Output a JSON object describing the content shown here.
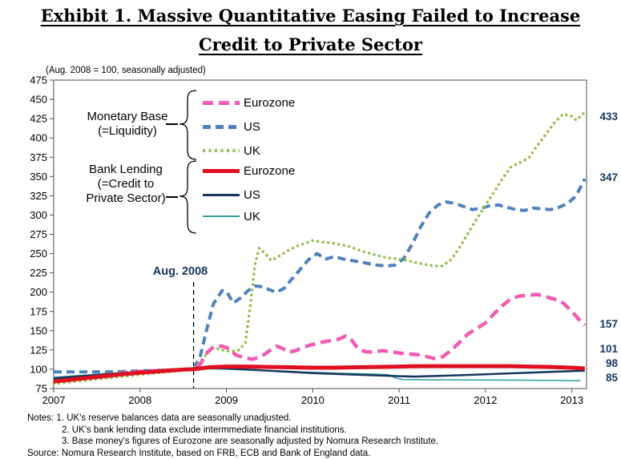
{
  "title": {
    "line1": "Exhibit 1. Massive Quantitative Easing Failed to Increase",
    "line2": "Credit to Private Sector"
  },
  "subtitle": "(Aug. 2008 = 100, seasonally adjusted)",
  "legend": {
    "monetary_base": {
      "label_line1": "Monetary Base",
      "label_line2": "(=Liquidity)",
      "items": [
        "Eurozone",
        "US",
        "UK"
      ]
    },
    "bank_lending": {
      "label_line1": "Bank Lending",
      "label_line2": "(=Credit to",
      "label_line3": "Private Sector)",
      "items": [
        "Eurozone",
        "US",
        "UK"
      ]
    }
  },
  "annotation": {
    "label": "Aug. 2008"
  },
  "notes": {
    "line1": "Notes: 1. UK's reserve balances data are seasonally unadjusted.",
    "line2": "2. UK's bank lending data exclude intermmediate  financial institutions.",
    "line3": "3. Base money's figures of Eurozone are seasonally adjusted by Nomura Research  Institute.",
    "source": "Source: Nomura Research Institute, based on FRB, ECB and Bank of England data."
  },
  "colors": {
    "eurozone_mb": "#F25CB1",
    "us_mb": "#4F81BD",
    "uk_mb": "#94BE4D",
    "eurozone_bl": "#E01020",
    "us_bl": "#17375E",
    "uk_bl": "#2E9E9E",
    "annotation_text": "#17375E",
    "axis": "#4d4d4d"
  },
  "chart_data": {
    "type": "line",
    "title": "Exhibit 1. Massive Quantitative Easing Failed to Increase Credit to Private Sector",
    "subtitle": "(Aug. 2008 = 100, seasonally adjusted)",
    "x_range": [
      2007,
      2013.17
    ],
    "y_range": [
      75,
      475
    ],
    "yticks": [
      75,
      100,
      125,
      150,
      175,
      200,
      225,
      250,
      275,
      300,
      325,
      350,
      375,
      400,
      425,
      450,
      475
    ],
    "xticks": [
      2007,
      2008,
      2009,
      2010,
      2011,
      2012,
      2013
    ],
    "grid": false,
    "legend_position": "inside-top-left",
    "annotation_line_x": 2008.62,
    "end_labels": [
      {
        "text": "433",
        "y": 147
      },
      {
        "text": "347",
        "y": 223
      },
      {
        "text": "157",
        "y": 406
      },
      {
        "text": "101",
        "y": 437
      },
      {
        "text": "98",
        "y": 455
      },
      {
        "text": "85",
        "y": 473
      }
    ],
    "series": [
      {
        "id": "eurozone-monetary-base",
        "name": "Eurozone",
        "group": "Monetary Base (=Liquidity)",
        "color": "#F25CB1",
        "width": 4.5,
        "dash": "13 7",
        "end_value": 157,
        "points": [
          [
            2007.0,
            86
          ],
          [
            2007.25,
            89
          ],
          [
            2007.5,
            92
          ],
          [
            2007.75,
            95
          ],
          [
            2008.0,
            97
          ],
          [
            2008.25,
            98.5
          ],
          [
            2008.5,
            99.5
          ],
          [
            2008.62,
            100
          ],
          [
            2008.7,
            107
          ],
          [
            2008.78,
            122
          ],
          [
            2008.85,
            129
          ],
          [
            2008.95,
            130
          ],
          [
            2009.05,
            126
          ],
          [
            2009.1,
            119
          ],
          [
            2009.2,
            115
          ],
          [
            2009.3,
            113
          ],
          [
            2009.4,
            116
          ],
          [
            2009.5,
            124
          ],
          [
            2009.58,
            130
          ],
          [
            2009.65,
            127
          ],
          [
            2009.72,
            122
          ],
          [
            2009.8,
            124
          ],
          [
            2009.9,
            129
          ],
          [
            2010.0,
            132
          ],
          [
            2010.1,
            135
          ],
          [
            2010.2,
            137
          ],
          [
            2010.3,
            139
          ],
          [
            2010.38,
            143
          ],
          [
            2010.45,
            138
          ],
          [
            2010.52,
            127
          ],
          [
            2010.6,
            123
          ],
          [
            2010.7,
            122
          ],
          [
            2010.8,
            124
          ],
          [
            2010.9,
            123
          ],
          [
            2011.0,
            121
          ],
          [
            2011.1,
            120
          ],
          [
            2011.2,
            119
          ],
          [
            2011.3,
            117
          ],
          [
            2011.4,
            114
          ],
          [
            2011.5,
            116
          ],
          [
            2011.6,
            124
          ],
          [
            2011.7,
            135
          ],
          [
            2011.8,
            146
          ],
          [
            2011.9,
            153
          ],
          [
            2012.0,
            160
          ],
          [
            2012.1,
            172
          ],
          [
            2012.2,
            183
          ],
          [
            2012.3,
            192
          ],
          [
            2012.4,
            195
          ],
          [
            2012.5,
            196
          ],
          [
            2012.6,
            197
          ],
          [
            2012.7,
            194
          ],
          [
            2012.8,
            191
          ],
          [
            2012.9,
            186
          ],
          [
            2013.0,
            175
          ],
          [
            2013.08,
            165
          ],
          [
            2013.15,
            157
          ]
        ]
      },
      {
        "id": "us-monetary-base",
        "name": "US",
        "group": "Monetary Base (=Liquidity)",
        "color": "#4F81BD",
        "width": 4,
        "dash": "10 6",
        "end_value": 347,
        "points": [
          [
            2007.0,
            96.5
          ],
          [
            2007.2,
            96.5
          ],
          [
            2007.4,
            96.5
          ],
          [
            2007.6,
            96.5
          ],
          [
            2007.8,
            97
          ],
          [
            2008.0,
            98
          ],
          [
            2008.2,
            98.5
          ],
          [
            2008.4,
            99
          ],
          [
            2008.62,
            100
          ],
          [
            2008.7,
            118
          ],
          [
            2008.78,
            155
          ],
          [
            2008.85,
            185
          ],
          [
            2008.95,
            202
          ],
          [
            2009.0,
            201
          ],
          [
            2009.08,
            186
          ],
          [
            2009.17,
            193
          ],
          [
            2009.25,
            202
          ],
          [
            2009.33,
            208
          ],
          [
            2009.42,
            207
          ],
          [
            2009.5,
            203
          ],
          [
            2009.58,
            200
          ],
          [
            2009.67,
            205
          ],
          [
            2009.75,
            216
          ],
          [
            2009.85,
            229
          ],
          [
            2009.95,
            242
          ],
          [
            2010.05,
            250
          ],
          [
            2010.15,
            243
          ],
          [
            2010.25,
            246
          ],
          [
            2010.35,
            243
          ],
          [
            2010.45,
            241
          ],
          [
            2010.55,
            239
          ],
          [
            2010.65,
            237
          ],
          [
            2010.75,
            235
          ],
          [
            2010.85,
            234
          ],
          [
            2010.95,
            235
          ],
          [
            2011.05,
            243
          ],
          [
            2011.15,
            262
          ],
          [
            2011.25,
            285
          ],
          [
            2011.35,
            303
          ],
          [
            2011.45,
            313
          ],
          [
            2011.55,
            317
          ],
          [
            2011.65,
            315
          ],
          [
            2011.75,
            311
          ],
          [
            2011.85,
            307
          ],
          [
            2011.95,
            309
          ],
          [
            2012.05,
            312
          ],
          [
            2012.15,
            313
          ],
          [
            2012.25,
            310
          ],
          [
            2012.35,
            307
          ],
          [
            2012.45,
            306
          ],
          [
            2012.55,
            309
          ],
          [
            2012.65,
            308
          ],
          [
            2012.75,
            307
          ],
          [
            2012.85,
            310
          ],
          [
            2012.95,
            315
          ],
          [
            2013.05,
            325
          ],
          [
            2013.15,
            347
          ]
        ]
      },
      {
        "id": "uk-monetary-base",
        "name": "UK",
        "group": "Monetary Base (=Liquidity)",
        "color": "#94BE4D",
        "width": 3.5,
        "dash": "dot",
        "end_value": 433,
        "points": [
          [
            2007.0,
            81
          ],
          [
            2007.17,
            83
          ],
          [
            2007.33,
            85
          ],
          [
            2007.5,
            87
          ],
          [
            2007.67,
            89
          ],
          [
            2007.83,
            91
          ],
          [
            2008.0,
            93
          ],
          [
            2008.17,
            95
          ],
          [
            2008.33,
            96.5
          ],
          [
            2008.5,
            98.5
          ],
          [
            2008.62,
            100
          ],
          [
            2008.7,
            110
          ],
          [
            2008.78,
            121
          ],
          [
            2008.85,
            128
          ],
          [
            2008.95,
            125
          ],
          [
            2009.05,
            123
          ],
          [
            2009.15,
            125
          ],
          [
            2009.22,
            135
          ],
          [
            2009.28,
            185
          ],
          [
            2009.33,
            235
          ],
          [
            2009.38,
            257
          ],
          [
            2009.45,
            250
          ],
          [
            2009.52,
            241
          ],
          [
            2009.6,
            246
          ],
          [
            2009.7,
            253
          ],
          [
            2009.8,
            259
          ],
          [
            2009.9,
            263
          ],
          [
            2010.0,
            267
          ],
          [
            2010.1,
            265
          ],
          [
            2010.2,
            264
          ],
          [
            2010.3,
            262
          ],
          [
            2010.4,
            260
          ],
          [
            2010.5,
            256
          ],
          [
            2010.6,
            252
          ],
          [
            2010.7,
            249
          ],
          [
            2010.8,
            246
          ],
          [
            2010.9,
            244
          ],
          [
            2011.0,
            243
          ],
          [
            2011.1,
            241
          ],
          [
            2011.2,
            238
          ],
          [
            2011.3,
            236
          ],
          [
            2011.4,
            234
          ],
          [
            2011.5,
            234
          ],
          [
            2011.6,
            242
          ],
          [
            2011.7,
            258
          ],
          [
            2011.8,
            277
          ],
          [
            2011.9,
            295
          ],
          [
            2012.0,
            313
          ],
          [
            2012.1,
            330
          ],
          [
            2012.2,
            348
          ],
          [
            2012.3,
            363
          ],
          [
            2012.4,
            368
          ],
          [
            2012.5,
            374
          ],
          [
            2012.6,
            390
          ],
          [
            2012.7,
            405
          ],
          [
            2012.8,
            420
          ],
          [
            2012.9,
            431
          ],
          [
            2013.0,
            428
          ],
          [
            2013.05,
            423
          ],
          [
            2013.15,
            433
          ]
        ]
      },
      {
        "id": "uk-bank-lending",
        "name": "UK",
        "group": "Bank Lending (=Credit to Private Sector)",
        "color": "#2E9E9E",
        "width": 1.5,
        "dash": null,
        "end_value": 85,
        "points": [
          [
            2007.0,
            89.5
          ],
          [
            2007.25,
            91.5
          ],
          [
            2007.5,
            93.5
          ],
          [
            2007.75,
            95.5
          ],
          [
            2008.0,
            97
          ],
          [
            2008.25,
            98.5
          ],
          [
            2008.5,
            99.5
          ],
          [
            2008.62,
            100
          ],
          [
            2008.8,
            100.5
          ],
          [
            2009.0,
            100
          ],
          [
            2009.25,
            99
          ],
          [
            2009.5,
            98
          ],
          [
            2009.75,
            97
          ],
          [
            2010.0,
            96
          ],
          [
            2010.25,
            95
          ],
          [
            2010.5,
            94.3
          ],
          [
            2010.75,
            93.5
          ],
          [
            2010.88,
            93
          ],
          [
            2010.96,
            88.5
          ],
          [
            2011.05,
            86.5
          ],
          [
            2011.3,
            86.3
          ],
          [
            2011.6,
            86.2
          ],
          [
            2012.0,
            86
          ],
          [
            2012.4,
            85.8
          ],
          [
            2012.8,
            85.5
          ],
          [
            2013.0,
            85.2
          ],
          [
            2013.1,
            85
          ]
        ]
      },
      {
        "id": "us-bank-lending",
        "name": "US",
        "group": "Bank Lending (=Credit to Private Sector)",
        "color": "#17375E",
        "width": 2.5,
        "dash": null,
        "end_value": 98,
        "points": [
          [
            2007.0,
            88
          ],
          [
            2007.25,
            90.5
          ],
          [
            2007.5,
            92.5
          ],
          [
            2007.75,
            94.5
          ],
          [
            2008.0,
            96.5
          ],
          [
            2008.25,
            98
          ],
          [
            2008.5,
            99.5
          ],
          [
            2008.62,
            100.5
          ],
          [
            2008.8,
            102
          ],
          [
            2009.0,
            101
          ],
          [
            2009.25,
            99.5
          ],
          [
            2009.5,
            98
          ],
          [
            2009.75,
            96.5
          ],
          [
            2010.0,
            95
          ],
          [
            2010.25,
            94
          ],
          [
            2010.5,
            93
          ],
          [
            2010.75,
            92
          ],
          [
            2011.0,
            91
          ],
          [
            2011.17,
            90.5
          ],
          [
            2011.33,
            91
          ],
          [
            2011.5,
            91.5
          ],
          [
            2011.75,
            92.5
          ],
          [
            2012.0,
            93.5
          ],
          [
            2012.25,
            94.5
          ],
          [
            2012.5,
            95.5
          ],
          [
            2012.75,
            96.5
          ],
          [
            2013.0,
            97.5
          ],
          [
            2013.15,
            98
          ]
        ]
      },
      {
        "id": "eurozone-bank-lending",
        "name": "Eurozone",
        "group": "Bank Lending (=Credit to Private Sector)",
        "color": "#E01020",
        "width": 5,
        "dash": null,
        "end_value": 101,
        "points": [
          [
            2007.0,
            84
          ],
          [
            2007.25,
            87
          ],
          [
            2007.5,
            90
          ],
          [
            2007.75,
            93
          ],
          [
            2008.0,
            95.5
          ],
          [
            2008.25,
            97.5
          ],
          [
            2008.5,
            99.5
          ],
          [
            2008.62,
            100
          ],
          [
            2008.8,
            102.5
          ],
          [
            2009.0,
            103.5
          ],
          [
            2009.25,
            103.5
          ],
          [
            2009.5,
            103
          ],
          [
            2009.75,
            102.5
          ],
          [
            2010.0,
            102
          ],
          [
            2010.25,
            102
          ],
          [
            2010.5,
            102.5
          ],
          [
            2010.75,
            103
          ],
          [
            2011.0,
            103.5
          ],
          [
            2011.25,
            104
          ],
          [
            2011.5,
            104
          ],
          [
            2011.75,
            104
          ],
          [
            2012.0,
            104
          ],
          [
            2012.25,
            104
          ],
          [
            2012.5,
            103.5
          ],
          [
            2012.75,
            103
          ],
          [
            2013.0,
            102
          ],
          [
            2013.15,
            101
          ]
        ]
      }
    ]
  }
}
